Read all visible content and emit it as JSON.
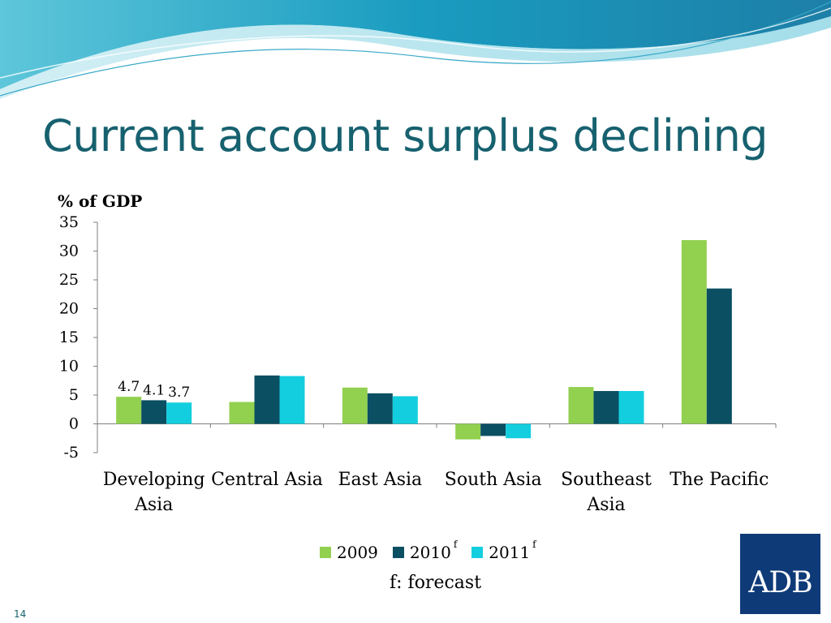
{
  "slide": {
    "title": "Current account surplus declining",
    "footnote": "f: forecast",
    "page_number": "14",
    "logo_text": "ADB"
  },
  "colors": {
    "s2009": "#92d050",
    "s2010": "#0b4f63",
    "s2011": "#13cede",
    "title": "#17616f",
    "logo_bg": "#0e3a78"
  },
  "chart_data": {
    "type": "bar",
    "ylabel": "% of GDP",
    "ylim": [
      -5,
      35
    ],
    "yticks": [
      "35",
      "30",
      "25",
      "20",
      "15",
      "10",
      "5",
      "0",
      "-5"
    ],
    "categories": [
      "Developing Asia",
      "Central Asia",
      "East Asia",
      "South Asia",
      "Southeast Asia",
      "The Pacific"
    ],
    "category_lines": [
      [
        "Developing",
        "Asia"
      ],
      [
        "Central Asia"
      ],
      [
        "East Asia"
      ],
      [
        "South Asia"
      ],
      [
        "Southeast",
        "Asia"
      ],
      [
        "The Pacific"
      ]
    ],
    "series": [
      {
        "name": "2009",
        "sup": "",
        "color": "#92d050",
        "values": [
          4.7,
          3.8,
          6.3,
          -2.7,
          6.4,
          31.9
        ]
      },
      {
        "name": "2010",
        "sup": "f",
        "color": "#0b4f63",
        "values": [
          4.1,
          8.4,
          5.3,
          -2.1,
          5.7,
          23.5
        ]
      },
      {
        "name": "2011",
        "sup": "f",
        "color": "#13cede",
        "values": [
          3.7,
          8.3,
          4.8,
          -2.5,
          5.7,
          null
        ]
      }
    ],
    "data_labels": [
      {
        "category": 0,
        "series": 0,
        "text": "4.7"
      },
      {
        "category": 0,
        "series": 1,
        "text": "4.1"
      },
      {
        "category": 0,
        "series": 2,
        "text": "3.7"
      }
    ],
    "legend_position": "bottom",
    "grid": false
  }
}
